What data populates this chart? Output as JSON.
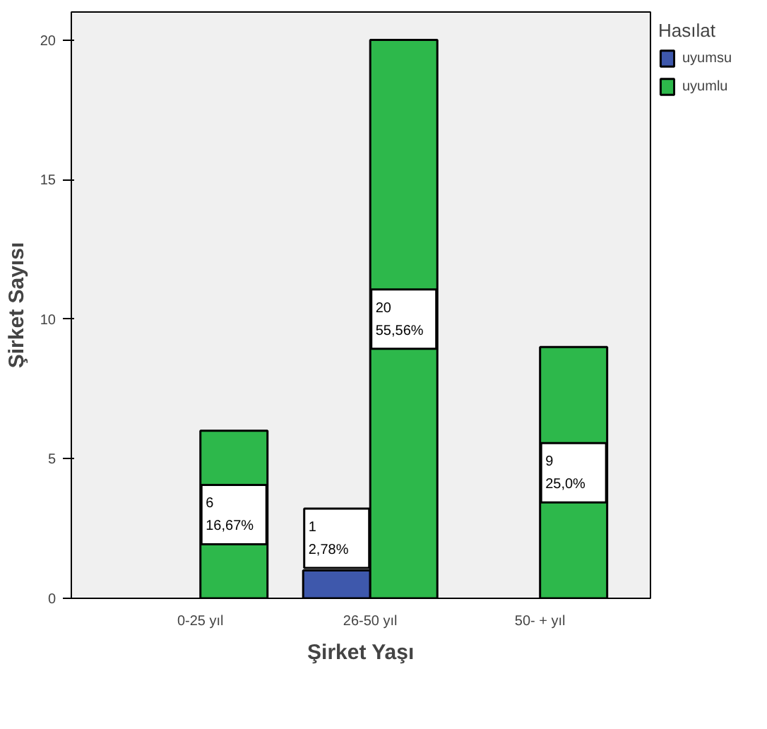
{
  "chart_data": {
    "type": "bar",
    "xlabel": "Şirket Yaşı",
    "ylabel": "Şirket Sayısı",
    "legend_title": "Hasılat",
    "legend": "top right",
    "grid": false,
    "categories": [
      "0-25 yıl",
      "26-50 yıl",
      "50- + yıl"
    ],
    "ylim": [
      0,
      21
    ],
    "yticks": [
      0,
      5,
      10,
      15,
      20
    ],
    "series": [
      {
        "name": "uyumsu",
        "color": "#3e58ac",
        "values": [
          null,
          1,
          null
        ],
        "value_labels": [
          null,
          "1\n2,78%",
          null
        ]
      },
      {
        "name": "uyumlu",
        "color": "#2db84b",
        "values": [
          6,
          20,
          9
        ],
        "value_labels": [
          "6\n16,67%",
          "20\n55,56%",
          "9\n25,0%"
        ]
      }
    ]
  }
}
